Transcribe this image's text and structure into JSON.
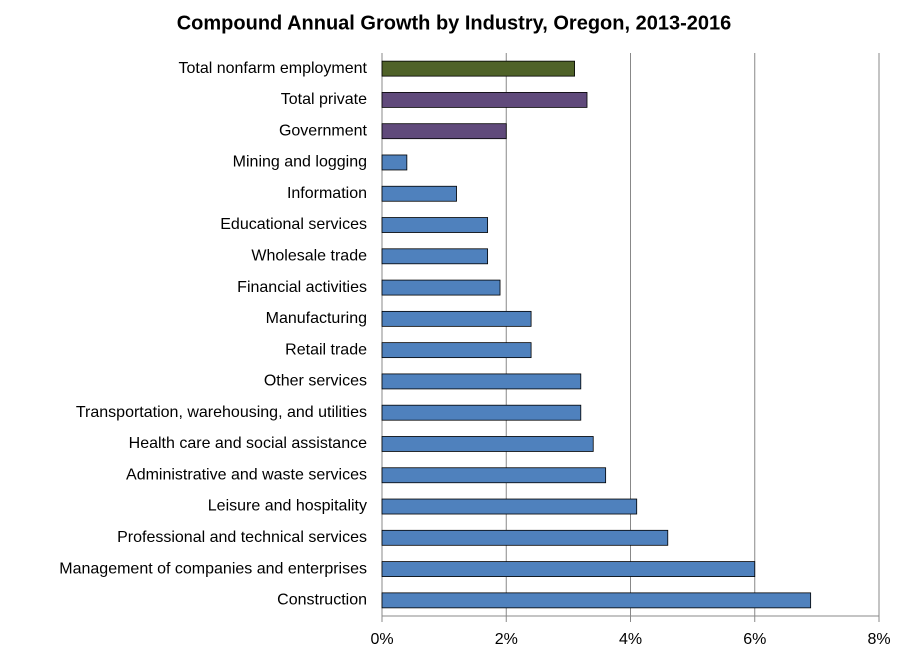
{
  "chart_data": {
    "type": "bar",
    "orientation": "horizontal",
    "title": "Compound Annual Growth by Industry, Oregon, 2013-2016",
    "categories": [
      "Total nonfarm employment",
      "Total private",
      "Government",
      "Mining and logging",
      "Information",
      "Educational services",
      "Wholesale trade",
      "Financial activities",
      "Manufacturing",
      "Retail trade",
      "Other services",
      "Transportation, warehousing, and utilities",
      "Health care and social assistance",
      "Administrative and waste services",
      "Leisure and hospitality",
      "Professional and technical services",
      "Management of companies and enterprises",
      "Construction"
    ],
    "values": [
      3.1,
      3.3,
      2.0,
      0.4,
      1.2,
      1.7,
      1.7,
      1.9,
      2.4,
      2.4,
      3.2,
      3.2,
      3.4,
      3.6,
      4.1,
      4.6,
      6.0,
      6.9
    ],
    "colors": [
      "#4f6228",
      "#604a7b",
      "#604a7b",
      "#4f81bd",
      "#4f81bd",
      "#4f81bd",
      "#4f81bd",
      "#4f81bd",
      "#4f81bd",
      "#4f81bd",
      "#4f81bd",
      "#4f81bd",
      "#4f81bd",
      "#4f81bd",
      "#4f81bd",
      "#4f81bd",
      "#4f81bd",
      "#4f81bd"
    ],
    "xlim": [
      0,
      8
    ],
    "xticks": [
      {
        "value": 0,
        "label": "0%"
      },
      {
        "value": 2,
        "label": "2%"
      },
      {
        "value": 4,
        "label": "4%"
      },
      {
        "value": 6,
        "label": "6%"
      },
      {
        "value": 8,
        "label": "8%"
      }
    ],
    "grid": true
  }
}
